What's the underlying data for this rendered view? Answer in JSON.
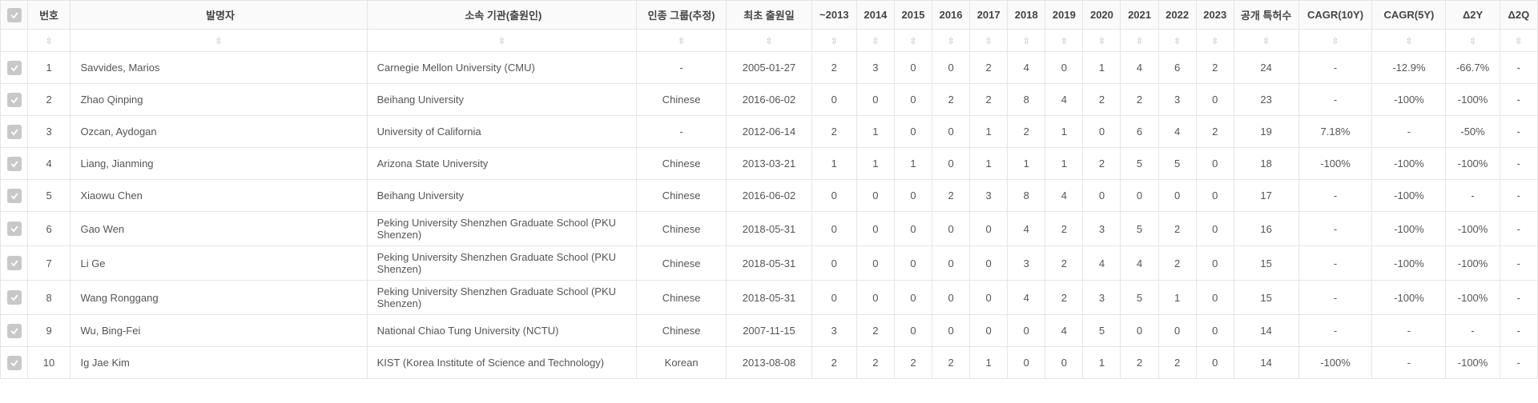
{
  "headers": {
    "chk": "",
    "num": "번호",
    "inventor": "발명자",
    "org": "소속 기관(출원인)",
    "group": "인종 그룹(추정)",
    "first_date": "최초 출원일",
    "y_pre2013": "~2013",
    "y2014": "2014",
    "y2015": "2015",
    "y2016": "2016",
    "y2017": "2017",
    "y2018": "2018",
    "y2019": "2019",
    "y2020": "2020",
    "y2021": "2021",
    "y2022": "2022",
    "y2023": "2023",
    "patent_count": "공개 특허수",
    "cagr10": "CAGR(10Y)",
    "cagr5": "CAGR(5Y)",
    "d2y": "Δ2Y",
    "d2q": "Δ2Q"
  },
  "sort_glyph": "⇳",
  "rows": [
    {
      "num": 1,
      "inventor": "Savvides, Marios",
      "org": "Carnegie Mellon University (CMU)",
      "group": "-",
      "date": "2005-01-27",
      "yrs": [
        "2",
        "3",
        "0",
        "0",
        "2",
        "4",
        "0",
        "1",
        "4",
        "6",
        "2"
      ],
      "cnt": "24",
      "cagr10": "-",
      "cagr5": "-12.9%",
      "d2y": "-66.7%",
      "d2q": "-"
    },
    {
      "num": 2,
      "inventor": "Zhao Qinping",
      "org": "Beihang University",
      "group": "Chinese",
      "date": "2016-06-02",
      "yrs": [
        "0",
        "0",
        "0",
        "2",
        "2",
        "8",
        "4",
        "2",
        "2",
        "3",
        "0"
      ],
      "cnt": "23",
      "cagr10": "-",
      "cagr5": "-100%",
      "d2y": "-100%",
      "d2q": "-"
    },
    {
      "num": 3,
      "inventor": "Ozcan, Aydogan",
      "org": "University of California",
      "group": "-",
      "date": "2012-06-14",
      "yrs": [
        "2",
        "1",
        "0",
        "0",
        "1",
        "2",
        "1",
        "0",
        "6",
        "4",
        "2"
      ],
      "cnt": "19",
      "cagr10": "7.18%",
      "cagr5": "-",
      "d2y": "-50%",
      "d2q": "-"
    },
    {
      "num": 4,
      "inventor": "Liang, Jianming",
      "org": "Arizona State University",
      "group": "Chinese",
      "date": "2013-03-21",
      "yrs": [
        "1",
        "1",
        "1",
        "0",
        "1",
        "1",
        "1",
        "2",
        "5",
        "5",
        "0"
      ],
      "cnt": "18",
      "cagr10": "-100%",
      "cagr5": "-100%",
      "d2y": "-100%",
      "d2q": "-"
    },
    {
      "num": 5,
      "inventor": "Xiaowu Chen",
      "org": "Beihang University",
      "group": "Chinese",
      "date": "2016-06-02",
      "yrs": [
        "0",
        "0",
        "0",
        "2",
        "3",
        "8",
        "4",
        "0",
        "0",
        "0",
        "0"
      ],
      "cnt": "17",
      "cagr10": "-",
      "cagr5": "-100%",
      "d2y": "-",
      "d2q": "-"
    },
    {
      "num": 6,
      "inventor": "Gao Wen",
      "org": "Peking University Shenzhen Graduate School (PKU Shenzen)",
      "group": "Chinese",
      "date": "2018-05-31",
      "yrs": [
        "0",
        "0",
        "0",
        "0",
        "0",
        "4",
        "2",
        "3",
        "5",
        "2",
        "0"
      ],
      "cnt": "16",
      "cagr10": "-",
      "cagr5": "-100%",
      "d2y": "-100%",
      "d2q": "-"
    },
    {
      "num": 7,
      "inventor": "Li Ge",
      "org": "Peking University Shenzhen Graduate School (PKU Shenzen)",
      "group": "Chinese",
      "date": "2018-05-31",
      "yrs": [
        "0",
        "0",
        "0",
        "0",
        "0",
        "3",
        "2",
        "4",
        "4",
        "2",
        "0"
      ],
      "cnt": "15",
      "cagr10": "-",
      "cagr5": "-100%",
      "d2y": "-100%",
      "d2q": "-"
    },
    {
      "num": 8,
      "inventor": "Wang Ronggang",
      "org": "Peking University Shenzhen Graduate School (PKU Shenzen)",
      "group": "Chinese",
      "date": "2018-05-31",
      "yrs": [
        "0",
        "0",
        "0",
        "0",
        "0",
        "4",
        "2",
        "3",
        "5",
        "1",
        "0"
      ],
      "cnt": "15",
      "cagr10": "-",
      "cagr5": "-100%",
      "d2y": "-100%",
      "d2q": "-"
    },
    {
      "num": 9,
      "inventor": "Wu, Bing-Fei",
      "org": "National Chiao Tung University (NCTU)",
      "group": "Chinese",
      "date": "2007-11-15",
      "yrs": [
        "3",
        "2",
        "0",
        "0",
        "0",
        "0",
        "4",
        "5",
        "0",
        "0",
        "0"
      ],
      "cnt": "14",
      "cagr10": "-",
      "cagr5": "-",
      "d2y": "-",
      "d2q": "-"
    },
    {
      "num": 10,
      "inventor": "Ig Jae Kim",
      "org": "KIST (Korea Institute of Science and Technology)",
      "group": "Korean",
      "date": "2013-08-08",
      "yrs": [
        "2",
        "2",
        "2",
        "2",
        "1",
        "0",
        "0",
        "1",
        "2",
        "2",
        "0"
      ],
      "cnt": "14",
      "cagr10": "-100%",
      "cagr5": "-",
      "d2y": "-100%",
      "d2q": "-"
    }
  ],
  "colors": {
    "border": "#e5e5e5",
    "header_bg": "#fafafa",
    "text": "#555555",
    "checkbox_bg": "#c8c8c8",
    "check_stroke": "#ffffff"
  }
}
